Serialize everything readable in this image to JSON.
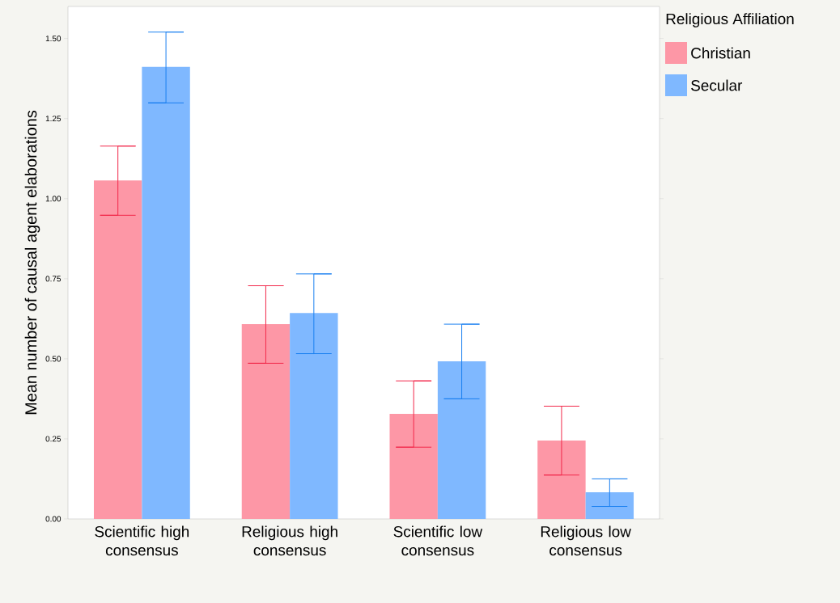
{
  "chart_data": {
    "type": "bar",
    "ylabel": "Mean number of causal agent elaborations",
    "legend_title": "Religious Affiliation",
    "categories": [
      "Scientific high consensus",
      "Religious high consensus",
      "Scientific low consensus",
      "Religious low consensus"
    ],
    "series": [
      {
        "name": "Christian",
        "color": "#fd97a6",
        "values": [
          1.057,
          0.608,
          0.328,
          0.245
        ],
        "errors": [
          [
            0.948,
            1.164
          ],
          [
            0.486,
            0.728
          ],
          [
            0.224,
            0.431
          ],
          [
            0.137,
            0.352
          ]
        ]
      },
      {
        "name": "Secular",
        "color": "#7fb8ff",
        "values": [
          1.411,
          0.643,
          0.492,
          0.083
        ],
        "errors": [
          [
            1.299,
            1.52
          ],
          [
            0.516,
            0.765
          ],
          [
            0.375,
            0.608
          ],
          [
            0.039,
            0.125
          ]
        ]
      }
    ],
    "ylim": [
      0,
      1.6
    ],
    "yticks": [
      {
        "value": 0,
        "label": "0.00"
      },
      {
        "value": 0.25,
        "label": "0.25"
      },
      {
        "value": 0.5,
        "label": "0.50"
      },
      {
        "value": 0.75,
        "label": "0.75"
      },
      {
        "value": 1,
        "label": "1.00"
      },
      {
        "value": 1.25,
        "label": "1.25"
      },
      {
        "value": 1.5,
        "label": "1.50"
      }
    ],
    "grid": false,
    "legend": "top right"
  }
}
